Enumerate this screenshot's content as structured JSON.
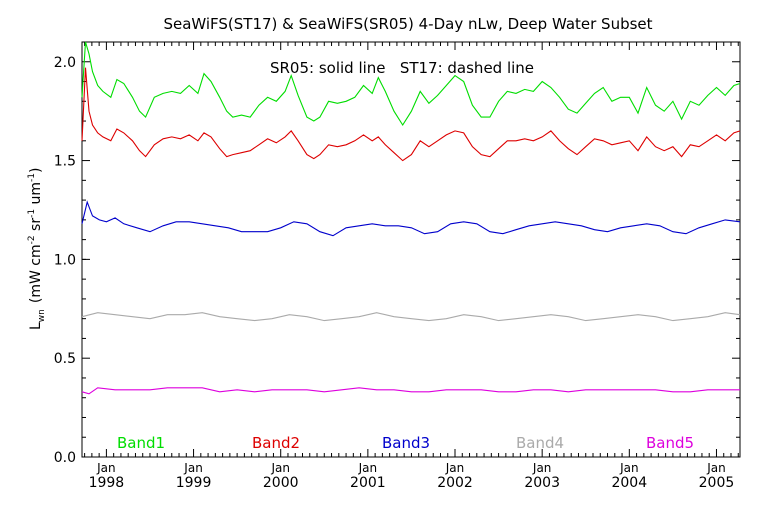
{
  "chart_data": {
    "type": "line",
    "title": "SeaWiFS(ST17) & SeaWiFS(SR05) 4-Day nLw, Deep Water Subset",
    "ylabel": "L",
    "ylabel_sub": "wn",
    "ylabel_units": "(mW cm",
    "ylabel_exp1": "-2",
    "ylabel_mid": " sr",
    "ylabel_exp2": "-1",
    "ylabel_mid2": " um",
    "ylabel_exp3": "-1",
    "ylabel_end": ")",
    "annotation": "SR05: solid line   ST17: dashed line",
    "xlim": [
      1997.72,
      2005.27
    ],
    "ylim": [
      0.0,
      2.1
    ],
    "yticks": [
      0.0,
      0.5,
      1.0,
      1.5,
      2.0
    ],
    "ytick_labels": [
      "0.0",
      "0.5",
      "1.0",
      "1.5",
      "2.0"
    ],
    "month_label": "Jan",
    "year_labels": [
      "1998",
      "1999",
      "2000",
      "2001",
      "2002",
      "2003",
      "2004",
      "2005"
    ],
    "legend": [
      "Band1",
      "Band2",
      "Band3",
      "Band4",
      "Band5"
    ],
    "grid": false,
    "series": [
      {
        "name": "Band1",
        "color": "#00dd00",
        "x": [
          1997.72,
          1997.76,
          1997.8,
          1997.84,
          1997.9,
          1997.96,
          1998.05,
          1998.12,
          1998.2,
          1998.3,
          1998.38,
          1998.45,
          1998.55,
          1998.65,
          1998.75,
          1998.85,
          1998.95,
          1999.05,
          1999.12,
          1999.2,
          1999.3,
          1999.38,
          1999.45,
          1999.55,
          1999.65,
          1999.75,
          1999.85,
          1999.95,
          2000.05,
          2000.12,
          2000.2,
          2000.3,
          2000.38,
          2000.45,
          2000.55,
          2000.65,
          2000.75,
          2000.85,
          2000.95,
          2001.05,
          2001.12,
          2001.2,
          2001.3,
          2001.4,
          2001.5,
          2001.6,
          2001.7,
          2001.8,
          2001.9,
          2002.0,
          2002.1,
          2002.2,
          2002.3,
          2002.4,
          2002.5,
          2002.6,
          2002.7,
          2002.8,
          2002.9,
          2003.0,
          2003.1,
          2003.2,
          2003.3,
          2003.4,
          2003.5,
          2003.6,
          2003.7,
          2003.8,
          2003.9,
          2004.0,
          2004.1,
          2004.2,
          2004.3,
          2004.4,
          2004.5,
          2004.6,
          2004.7,
          2004.8,
          2004.9,
          2005.0,
          2005.1,
          2005.2,
          2005.27
        ],
        "y": [
          1.82,
          2.1,
          2.04,
          1.95,
          1.88,
          1.85,
          1.82,
          1.91,
          1.89,
          1.82,
          1.75,
          1.72,
          1.82,
          1.84,
          1.85,
          1.84,
          1.88,
          1.84,
          1.94,
          1.9,
          1.82,
          1.75,
          1.72,
          1.73,
          1.72,
          1.78,
          1.82,
          1.8,
          1.85,
          1.93,
          1.83,
          1.72,
          1.7,
          1.72,
          1.8,
          1.79,
          1.8,
          1.82,
          1.88,
          1.84,
          1.92,
          1.85,
          1.75,
          1.68,
          1.75,
          1.85,
          1.79,
          1.83,
          1.88,
          1.93,
          1.9,
          1.78,
          1.72,
          1.72,
          1.8,
          1.85,
          1.84,
          1.86,
          1.85,
          1.9,
          1.87,
          1.82,
          1.76,
          1.74,
          1.79,
          1.84,
          1.87,
          1.8,
          1.82,
          1.82,
          1.74,
          1.87,
          1.78,
          1.75,
          1.8,
          1.71,
          1.8,
          1.78,
          1.83,
          1.87,
          1.83,
          1.88,
          1.89
        ]
      },
      {
        "name": "Band2",
        "color": "#dd0000",
        "x": [
          1997.72,
          1997.76,
          1997.8,
          1997.84,
          1997.9,
          1997.96,
          1998.05,
          1998.12,
          1998.2,
          1998.3,
          1998.38,
          1998.45,
          1998.55,
          1998.65,
          1998.75,
          1998.85,
          1998.95,
          1999.05,
          1999.12,
          1999.2,
          1999.3,
          1999.38,
          1999.45,
          1999.55,
          1999.65,
          1999.75,
          1999.85,
          1999.95,
          2000.05,
          2000.12,
          2000.2,
          2000.3,
          2000.38,
          2000.45,
          2000.55,
          2000.65,
          2000.75,
          2000.85,
          2000.95,
          2001.05,
          2001.12,
          2001.2,
          2001.3,
          2001.4,
          2001.5,
          2001.6,
          2001.7,
          2001.8,
          2001.9,
          2002.0,
          2002.1,
          2002.2,
          2002.3,
          2002.4,
          2002.5,
          2002.6,
          2002.7,
          2002.8,
          2002.9,
          2003.0,
          2003.1,
          2003.2,
          2003.3,
          2003.4,
          2003.5,
          2003.6,
          2003.7,
          2003.8,
          2003.9,
          2004.0,
          2004.1,
          2004.2,
          2004.3,
          2004.4,
          2004.5,
          2004.6,
          2004.7,
          2004.8,
          2004.9,
          2005.0,
          2005.1,
          2005.2,
          2005.27
        ],
        "y": [
          1.6,
          1.97,
          1.75,
          1.68,
          1.64,
          1.62,
          1.6,
          1.66,
          1.64,
          1.6,
          1.55,
          1.52,
          1.58,
          1.61,
          1.62,
          1.61,
          1.63,
          1.6,
          1.64,
          1.62,
          1.56,
          1.52,
          1.53,
          1.54,
          1.55,
          1.58,
          1.61,
          1.59,
          1.62,
          1.65,
          1.6,
          1.53,
          1.51,
          1.53,
          1.58,
          1.57,
          1.58,
          1.6,
          1.63,
          1.6,
          1.62,
          1.58,
          1.54,
          1.5,
          1.53,
          1.6,
          1.57,
          1.6,
          1.63,
          1.65,
          1.64,
          1.57,
          1.53,
          1.52,
          1.56,
          1.6,
          1.6,
          1.61,
          1.6,
          1.62,
          1.65,
          1.6,
          1.56,
          1.53,
          1.57,
          1.61,
          1.6,
          1.58,
          1.59,
          1.6,
          1.55,
          1.62,
          1.57,
          1.55,
          1.57,
          1.52,
          1.58,
          1.57,
          1.6,
          1.63,
          1.6,
          1.64,
          1.65
        ]
      },
      {
        "name": "Band3",
        "color": "#0000cc",
        "x": [
          1997.72,
          1997.78,
          1997.84,
          1997.92,
          1998.0,
          1998.1,
          1998.2,
          1998.35,
          1998.5,
          1998.65,
          1998.8,
          1998.95,
          1999.1,
          1999.25,
          1999.4,
          1999.55,
          1999.7,
          1999.85,
          2000.0,
          2000.15,
          2000.3,
          2000.45,
          2000.6,
          2000.75,
          2000.9,
          2001.05,
          2001.2,
          2001.35,
          2001.5,
          2001.65,
          2001.8,
          2001.95,
          2002.1,
          2002.25,
          2002.4,
          2002.55,
          2002.7,
          2002.85,
          2003.0,
          2003.15,
          2003.3,
          2003.45,
          2003.6,
          2003.75,
          2003.9,
          2004.05,
          2004.2,
          2004.35,
          2004.5,
          2004.65,
          2004.8,
          2004.95,
          2005.1,
          2005.27
        ],
        "y": [
          1.18,
          1.29,
          1.22,
          1.2,
          1.19,
          1.21,
          1.18,
          1.16,
          1.14,
          1.17,
          1.19,
          1.19,
          1.18,
          1.17,
          1.16,
          1.14,
          1.14,
          1.14,
          1.16,
          1.19,
          1.18,
          1.14,
          1.12,
          1.16,
          1.17,
          1.18,
          1.17,
          1.17,
          1.16,
          1.13,
          1.14,
          1.18,
          1.19,
          1.18,
          1.14,
          1.13,
          1.15,
          1.17,
          1.18,
          1.19,
          1.18,
          1.17,
          1.15,
          1.14,
          1.16,
          1.17,
          1.18,
          1.17,
          1.14,
          1.13,
          1.16,
          1.18,
          1.2,
          1.19
        ]
      },
      {
        "name": "Band4",
        "color": "#aaaaaa",
        "x": [
          1997.72,
          1997.9,
          1998.1,
          1998.3,
          1998.5,
          1998.7,
          1998.9,
          1999.1,
          1999.3,
          1999.5,
          1999.7,
          1999.9,
          2000.1,
          2000.3,
          2000.5,
          2000.7,
          2000.9,
          2001.1,
          2001.3,
          2001.5,
          2001.7,
          2001.9,
          2002.1,
          2002.3,
          2002.5,
          2002.7,
          2002.9,
          2003.1,
          2003.3,
          2003.5,
          2003.7,
          2003.9,
          2004.1,
          2004.3,
          2004.5,
          2004.7,
          2004.9,
          2005.1,
          2005.27
        ],
        "y": [
          0.71,
          0.73,
          0.72,
          0.71,
          0.7,
          0.72,
          0.72,
          0.73,
          0.71,
          0.7,
          0.69,
          0.7,
          0.72,
          0.71,
          0.69,
          0.7,
          0.71,
          0.73,
          0.71,
          0.7,
          0.69,
          0.7,
          0.72,
          0.71,
          0.69,
          0.7,
          0.71,
          0.72,
          0.71,
          0.69,
          0.7,
          0.71,
          0.72,
          0.71,
          0.69,
          0.7,
          0.71,
          0.73,
          0.72
        ]
      },
      {
        "name": "Band5",
        "color": "#dd00dd",
        "x": [
          1997.72,
          1997.8,
          1997.9,
          1998.1,
          1998.3,
          1998.5,
          1998.7,
          1998.9,
          1999.1,
          1999.3,
          1999.5,
          1999.7,
          1999.9,
          2000.1,
          2000.3,
          2000.5,
          2000.7,
          2000.9,
          2001.1,
          2001.3,
          2001.5,
          2001.7,
          2001.9,
          2002.1,
          2002.3,
          2002.5,
          2002.7,
          2002.9,
          2003.1,
          2003.3,
          2003.5,
          2003.7,
          2003.9,
          2004.1,
          2004.3,
          2004.5,
          2004.7,
          2004.9,
          2005.1,
          2005.27
        ],
        "y": [
          0.33,
          0.32,
          0.35,
          0.34,
          0.34,
          0.34,
          0.35,
          0.35,
          0.35,
          0.33,
          0.34,
          0.33,
          0.34,
          0.34,
          0.34,
          0.33,
          0.34,
          0.35,
          0.34,
          0.34,
          0.33,
          0.33,
          0.34,
          0.34,
          0.34,
          0.33,
          0.33,
          0.34,
          0.34,
          0.33,
          0.34,
          0.34,
          0.34,
          0.34,
          0.34,
          0.33,
          0.33,
          0.34,
          0.34,
          0.34
        ]
      }
    ]
  }
}
